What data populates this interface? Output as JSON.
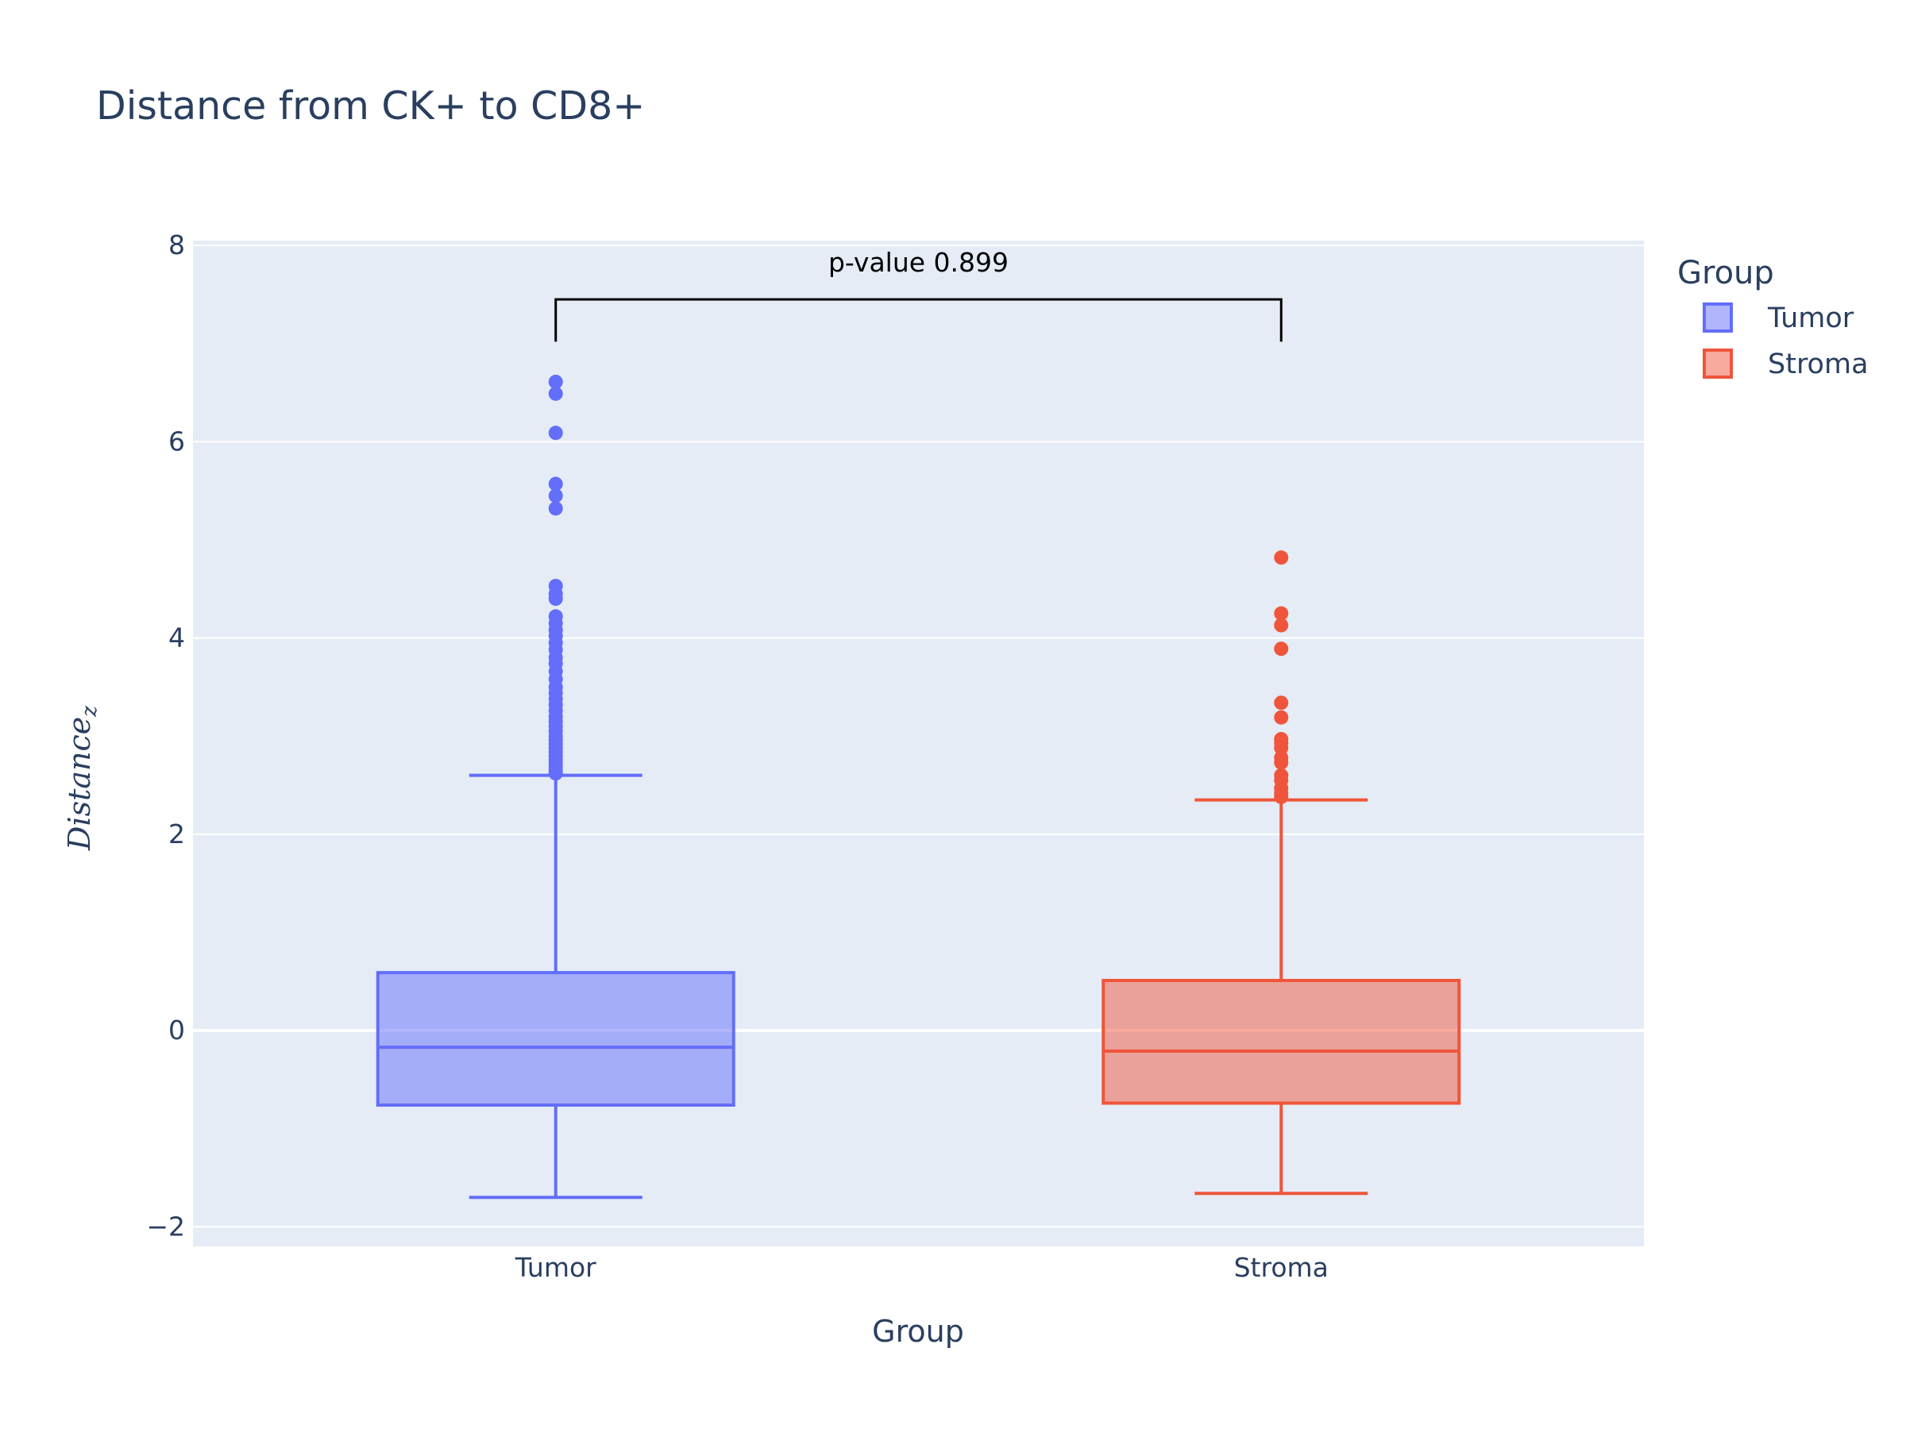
{
  "chart_data": {
    "type": "box",
    "title": "Distance from CK+ to CD8+",
    "xlabel": "Group",
    "ylabel": {
      "base": "Distance",
      "subscript": "z"
    },
    "ylim": [
      -2.2,
      8.05
    ],
    "yticks": [
      -2,
      0,
      2,
      4,
      6,
      8
    ],
    "ytick_labels": [
      "−2",
      "0",
      "2",
      "4",
      "6",
      "8"
    ],
    "categories": [
      "Tumor",
      "Stroma"
    ],
    "grid": true,
    "legend": {
      "title": "Group",
      "placement": "top-right"
    },
    "series": [
      {
        "name": "Tumor",
        "color": "#636efa",
        "fill": "rgba(99,110,250,0.5)",
        "lower_fence": -1.7,
        "q1": -0.76,
        "median": -0.17,
        "q3": 0.59,
        "upper_fence": 2.6,
        "outliers": [
          2.62,
          2.65,
          2.68,
          2.72,
          2.76,
          2.8,
          2.84,
          2.88,
          2.92,
          2.96,
          3.0,
          3.05,
          3.1,
          3.15,
          3.2,
          3.26,
          3.32,
          3.38,
          3.44,
          3.5,
          3.58,
          3.66,
          3.74,
          3.8,
          3.88,
          3.95,
          4.02,
          4.08,
          4.15,
          4.22,
          4.4,
          4.45,
          4.53,
          5.32,
          5.45,
          5.57,
          6.09,
          6.49,
          6.61
        ]
      },
      {
        "name": "Stroma",
        "color": "#ef553b",
        "fill": "rgba(239,85,59,0.5)",
        "lower_fence": -1.66,
        "q1": -0.74,
        "median": -0.21,
        "q3": 0.51,
        "upper_fence": 2.35,
        "outliers": [
          2.38,
          2.42,
          2.47,
          2.55,
          2.6,
          2.73,
          2.78,
          2.88,
          2.93,
          2.97,
          3.19,
          3.34,
          3.89,
          4.13,
          4.25,
          4.82
        ]
      }
    ],
    "annotation": {
      "text": "p-value 0.899",
      "bracket_top": 7.45,
      "bracket_bottom": 7.02,
      "from": "Tumor",
      "to": "Stroma"
    }
  }
}
